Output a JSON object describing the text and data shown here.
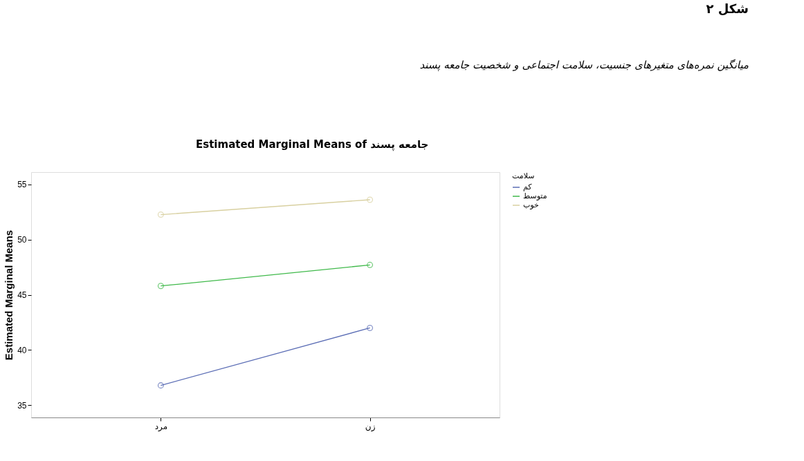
{
  "chart_data": {
    "type": "line",
    "title": "Estimated Marginal Means of جامعه پسند",
    "ylabel": "Estimated Marginal Means",
    "legend_title": "سلامت",
    "annotations": [
      "شکل ۲",
      "میانگین نمره‌های متغیرهای جنسیت، سلامت اجتماعی و شخصیت جامعه پسند"
    ],
    "categories": [
      "مرد",
      "زن"
    ],
    "series": [
      {
        "name": "کم",
        "color": "#5b6db5",
        "values": [
          36.8,
          42.0
        ]
      },
      {
        "name": "متوسط",
        "color": "#3fb94a",
        "values": [
          45.8,
          47.7
        ]
      },
      {
        "name": "خوب",
        "color": "#d8d0a0",
        "values": [
          52.25,
          53.6
        ]
      }
    ],
    "ylim": [
      33.9,
      56.1
    ],
    "yticks": [
      35,
      40,
      45,
      50,
      55
    ],
    "grid": false,
    "legend": "top right",
    "marker": "circle",
    "line_style": "solid"
  }
}
